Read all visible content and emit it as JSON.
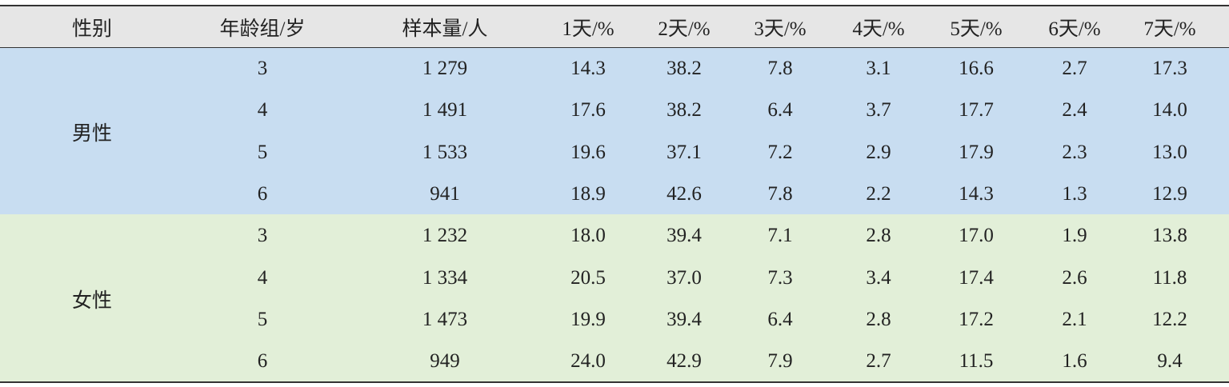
{
  "table": {
    "header": [
      "性别",
      "年龄组/岁",
      "样本量/人",
      "1天/%",
      "2天/%",
      "3天/%",
      "4天/%",
      "5天/%",
      "6天/%",
      "7天/%"
    ],
    "groups": [
      {
        "label": "男性",
        "rows": [
          [
            "3",
            "1 279",
            "14.3",
            "38.2",
            "7.8",
            "3.1",
            "16.6",
            "2.7",
            "17.3"
          ],
          [
            "4",
            "1 491",
            "17.6",
            "38.2",
            "6.4",
            "3.7",
            "17.7",
            "2.4",
            "14.0"
          ],
          [
            "5",
            "1 533",
            "19.6",
            "37.1",
            "7.2",
            "2.9",
            "17.9",
            "2.3",
            "13.0"
          ],
          [
            "6",
            "941",
            "18.9",
            "42.6",
            "7.8",
            "2.2",
            "14.3",
            "1.3",
            "12.9"
          ]
        ]
      },
      {
        "label": "女性",
        "rows": [
          [
            "3",
            "1 232",
            "18.0",
            "39.4",
            "7.1",
            "2.8",
            "17.0",
            "1.9",
            "13.8"
          ],
          [
            "4",
            "1 334",
            "20.5",
            "37.0",
            "7.3",
            "3.4",
            "17.4",
            "2.6",
            "11.8"
          ],
          [
            "5",
            "1 473",
            "19.9",
            "39.4",
            "6.4",
            "2.8",
            "17.2",
            "2.1",
            "12.2"
          ],
          [
            "6",
            "949",
            "24.0",
            "42.9",
            "7.9",
            "2.7",
            "11.5",
            "1.6",
            "9.4"
          ]
        ]
      }
    ]
  }
}
